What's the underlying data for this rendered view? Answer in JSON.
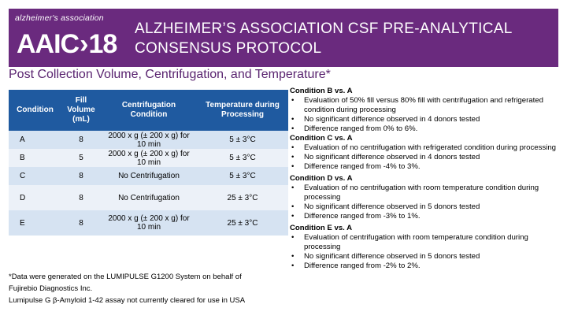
{
  "header": {
    "logo_top": "alzheimer's association",
    "logo_main_left": "AAIC",
    "logo_main_right": "18",
    "title": "ALZHEIMER’S ASSOCIATION CSF PRE-ANALYTICAL CONSENSUS PROTOCOL",
    "bg_color": "#6a2a7e"
  },
  "subtitle": "Post Collection Volume, Centrifugation, and Temperature*",
  "table": {
    "headers": [
      "Condition",
      "Fill Volume (mL)",
      "Centrifugation Condition",
      "Temperature during Processing"
    ],
    "rows": [
      [
        "A",
        "8",
        "2000 x g (± 200 x g) for 10 min",
        "5 ± 3°C"
      ],
      [
        "B",
        "5",
        "2000 x g (± 200 x g) for 10 min",
        "5 ± 3°C"
      ],
      [
        "C",
        "8",
        "No Centrifugation",
        "5 ± 3°C"
      ],
      [
        "D",
        "8",
        "No Centrifugation",
        "25 ± 3°C"
      ],
      [
        "E",
        "8",
        "2000 x g (± 200 x g) for 10 min",
        "25 ± 3°C"
      ]
    ],
    "header_color": "#1f5aa0",
    "row_colors": [
      "#d6e3f2",
      "#ecf1f8"
    ]
  },
  "footnote": {
    "line1": "*Data were generated on the LUMIPULSE G1200 System on behalf of",
    "line2": "Fujirebio Diagnostics Inc.",
    "line3": "Lumipulse G β-Amyloid 1-42 assay not currently cleared for use in USA"
  },
  "comparisons": [
    {
      "title": "Condition B vs. A",
      "bullets": [
        "Evaluation of 50% fill versus 80% fill with centrifugation and refrigerated condition during processing",
        "No significant difference observed in 4 donors tested",
        "Difference ranged from 0% to 6%."
      ]
    },
    {
      "title": "Condition C vs. A",
      "bullets": [
        "Evaluation of no centrifugation with refrigerated condition during processing",
        "No significant difference observed in 4 donors tested",
        "Difference ranged from -4% to 3%."
      ]
    },
    {
      "title": "Condition D vs. A",
      "bullets": [
        "Evaluation of no centrifugation with room temperature condition during processing",
        "No significant difference observed in 5 donors tested",
        "Difference ranged from -3% to 1%."
      ]
    },
    {
      "title": "Condition E vs. A",
      "bullets": [
        "Evaluation of centrifugation with room temperature condition during processing",
        "No significant difference observed in 5 donors tested",
        "Difference ranged from -2% to 2%."
      ]
    }
  ]
}
